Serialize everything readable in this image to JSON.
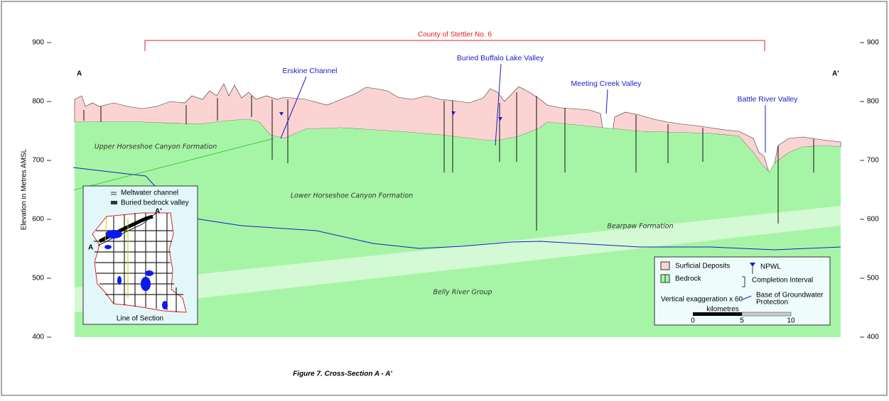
{
  "figure": {
    "caption": "Figure 7. Cross-Section A - A'",
    "y_axis_label": "Elevation in Metres AMSL",
    "yticks": [
      900,
      800,
      700,
      600,
      500,
      400
    ],
    "ylim": [
      400,
      900
    ],
    "county_label": "County of Stettler No. 6",
    "section_start": "A",
    "section_end": "A'",
    "valleys": [
      "Erskine Channel",
      "Buried Buffalo Lake Valley",
      "Meeting Creek Valley",
      "Battle River Valley"
    ],
    "formations": [
      "Upper Horseshoe Canyon Formation",
      "Lower Horseshoe Canyon Formation",
      "Bearpaw Formation",
      "Belly River Group"
    ]
  },
  "legend": {
    "items": [
      "Surficial Deposits",
      "Bedrock",
      "NPWL",
      "Completion Interval"
    ],
    "groundwater": [
      "Base of Groundwater",
      "Protection"
    ],
    "exaggeration": "Vertical exaggeration x 60",
    "scale_unit": "kilometres",
    "scale_ticks": [
      0,
      5,
      10
    ]
  },
  "inset": {
    "items": [
      "Meltwater channel",
      "Buried bedrock valley"
    ],
    "end_label": "A'",
    "start_label": "A",
    "title": "Line of Section"
  }
}
